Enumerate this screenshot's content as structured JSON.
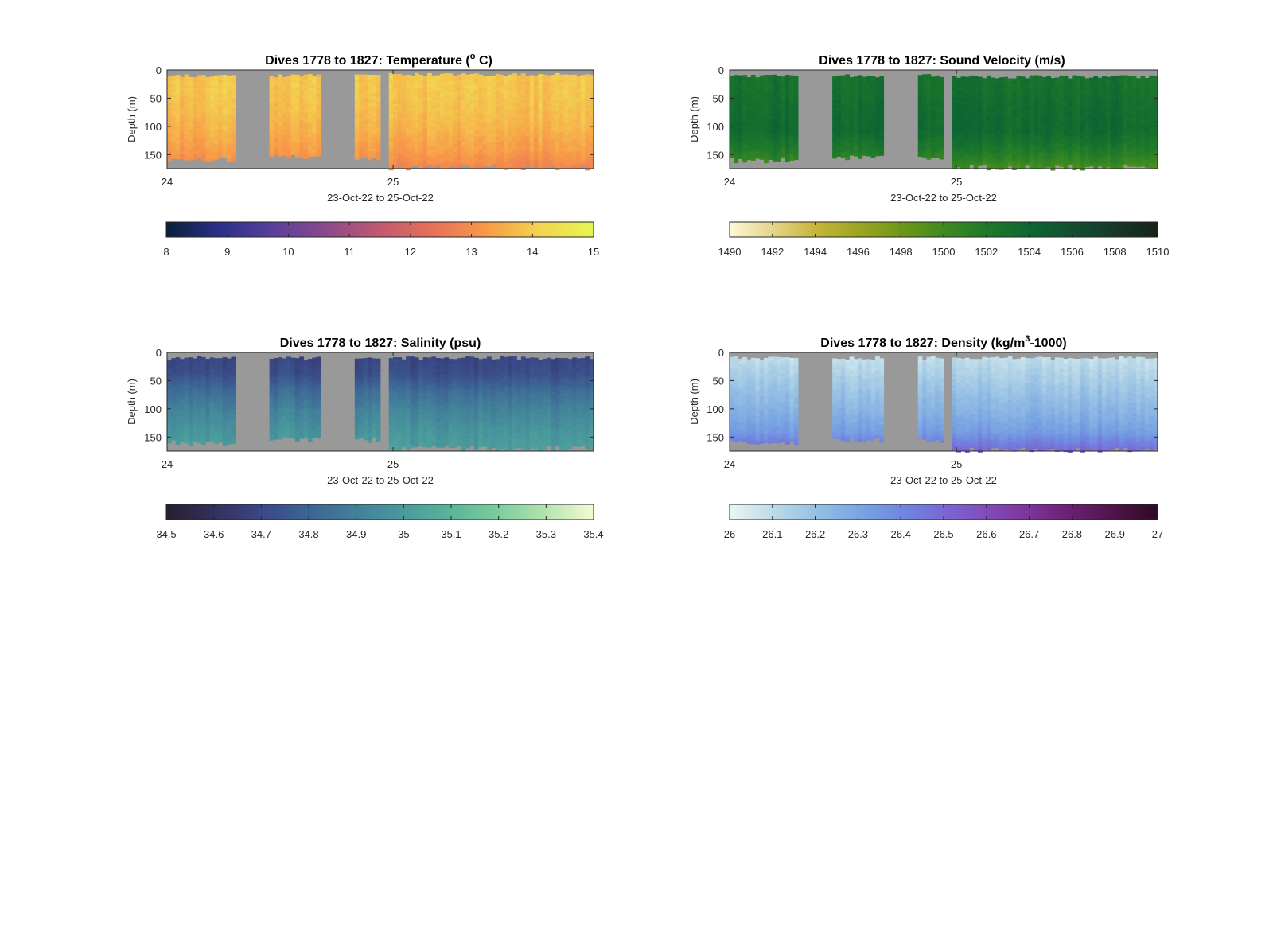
{
  "figure": {
    "xlabel": "23-Oct-22 to 25-Oct-22",
    "ylabel": "Depth (m)",
    "background": "#ffffff",
    "nodata_color": "#999999"
  },
  "chart_data": [
    {
      "type": "heatmap",
      "title_parts": [
        "Dives 1778 to 1827: Temperature (",
        "o",
        " C)"
      ],
      "xlabel": "23-Oct-22 to 25-Oct-22",
      "ylabel": "Depth (m)",
      "x_ticks": [
        "24",
        "25"
      ],
      "x_tick_values": [
        0.0,
        0.53
      ],
      "xlim": [
        0,
        1
      ],
      "y_ticks": [
        "0",
        "50",
        "100",
        "150"
      ],
      "y_tick_values": [
        0,
        50,
        100,
        150
      ],
      "ylim": [
        0,
        175
      ],
      "y_reversed": true,
      "data_segments": [
        [
          0.0,
          0.16
        ],
        [
          0.24,
          0.36
        ],
        [
          0.44,
          0.5
        ],
        [
          0.52,
          1.0
        ]
      ],
      "surface_depth": [
        10,
        10,
        10,
        8
      ],
      "bottom_depth": [
        160,
        155,
        160,
        173
      ],
      "profile": [
        13.9,
        13.9,
        13.8,
        13.6,
        13.3,
        12.8
      ],
      "colorbar": {
        "ticks": [
          "8",
          "9",
          "10",
          "11",
          "12",
          "13",
          "14",
          "15"
        ],
        "range": [
          8,
          15
        ],
        "colors": [
          "#08203a",
          "#2b2f88",
          "#5a3f9c",
          "#8c4a8a",
          "#c05a70",
          "#e8705a",
          "#f89a48",
          "#f2d550",
          "#e6f552"
        ]
      }
    },
    {
      "type": "heatmap",
      "title_parts": [
        "Dives 1778 to 1827: Sound Velocity (m/s)"
      ],
      "xlabel": "23-Oct-22 to 25-Oct-22",
      "ylabel": "Depth (m)",
      "x_ticks": [
        "24",
        "25"
      ],
      "x_tick_values": [
        0.0,
        0.53
      ],
      "xlim": [
        0,
        1
      ],
      "y_ticks": [
        "0",
        "50",
        "100",
        "150"
      ],
      "y_tick_values": [
        0,
        50,
        100,
        150
      ],
      "ylim": [
        0,
        175
      ],
      "y_reversed": true,
      "data_segments": [
        [
          0.0,
          0.16
        ],
        [
          0.24,
          0.36
        ],
        [
          0.44,
          0.5
        ],
        [
          0.52,
          1.0
        ]
      ],
      "surface_depth": [
        10,
        10,
        10,
        12
      ],
      "bottom_depth": [
        160,
        155,
        155,
        173
      ],
      "profile": [
        1502.8,
        1503.0,
        1503.4,
        1503.6,
        1502.0,
        1499.5
      ],
      "colorbar": {
        "ticks": [
          "1490",
          "1492",
          "1494",
          "1496",
          "1498",
          "1500",
          "1502",
          "1504",
          "1506",
          "1508",
          "1510"
        ],
        "range": [
          1490,
          1510
        ],
        "colors": [
          "#fdf8d8",
          "#e6d48a",
          "#c8b43a",
          "#9da622",
          "#6f9818",
          "#3f8a1f",
          "#1e7a2a",
          "#0e6632",
          "#124f30",
          "#16382a",
          "#162318"
        ]
      }
    },
    {
      "type": "heatmap",
      "title_parts": [
        "Dives 1778 to 1827: Salinity (psu)"
      ],
      "xlabel": "23-Oct-22 to 25-Oct-22",
      "ylabel": "Depth (m)",
      "x_ticks": [
        "24",
        "25"
      ],
      "x_tick_values": [
        0.0,
        0.53
      ],
      "xlim": [
        0,
        1
      ],
      "y_ticks": [
        "0",
        "50",
        "100",
        "150"
      ],
      "y_tick_values": [
        0,
        50,
        100,
        150
      ],
      "ylim": [
        0,
        175
      ],
      "y_reversed": true,
      "data_segments": [
        [
          0.0,
          0.16
        ],
        [
          0.24,
          0.36
        ],
        [
          0.44,
          0.5
        ],
        [
          0.52,
          1.0
        ]
      ],
      "surface_depth": [
        10,
        10,
        10,
        10
      ],
      "bottom_depth": [
        160,
        155,
        155,
        170
      ],
      "profile": [
        34.68,
        34.72,
        34.84,
        34.92,
        34.98,
        35.02
      ],
      "colorbar": {
        "ticks": [
          "34.5",
          "34.6",
          "34.7",
          "34.8",
          "34.9",
          "35",
          "35.1",
          "35.2",
          "35.3",
          "35.4"
        ],
        "range": [
          34.5,
          35.4
        ],
        "colors": [
          "#291e2e",
          "#33305c",
          "#3a4886",
          "#3c6494",
          "#42809a",
          "#4a9a9c",
          "#5bb49c",
          "#7ccd9e",
          "#b4e4ae",
          "#f6fad2"
        ]
      }
    },
    {
      "type": "heatmap",
      "title_parts": [
        "Dives 1778 to 1827: Density (kg/m",
        "3",
        "-1000)"
      ],
      "xlabel": "23-Oct-22 to 25-Oct-22",
      "ylabel": "Depth (m)",
      "x_ticks": [
        "24",
        "25"
      ],
      "x_tick_values": [
        0.0,
        0.53
      ],
      "xlim": [
        0,
        1
      ],
      "y_ticks": [
        "0",
        "50",
        "100",
        "150"
      ],
      "y_tick_values": [
        0,
        50,
        100,
        150
      ],
      "ylim": [
        0,
        175
      ],
      "y_reversed": true,
      "data_segments": [
        [
          0.0,
          0.16
        ],
        [
          0.24,
          0.36
        ],
        [
          0.44,
          0.5
        ],
        [
          0.52,
          1.0
        ]
      ],
      "surface_depth": [
        10,
        10,
        10,
        10
      ],
      "bottom_depth": [
        160,
        155,
        155,
        173
      ],
      "profile": [
        26.08,
        26.14,
        26.2,
        26.26,
        26.34,
        26.52
      ],
      "colorbar": {
        "ticks": [
          "26",
          "26.1",
          "26.2",
          "26.3",
          "26.4",
          "26.5",
          "26.6",
          "26.7",
          "26.8",
          "26.9",
          "27"
        ],
        "range": [
          26,
          27
        ],
        "colors": [
          "#eaf6f7",
          "#bddbe8",
          "#96c0e4",
          "#7aa6e2",
          "#7088e0",
          "#7a68d4",
          "#804dba",
          "#7c3498",
          "#6a2072",
          "#4e1448",
          "#2e0a22"
        ]
      }
    }
  ]
}
